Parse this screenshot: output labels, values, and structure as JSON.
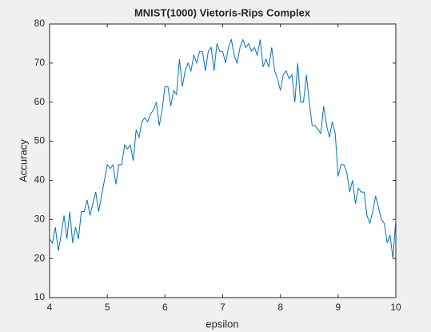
{
  "chart_data": {
    "type": "line",
    "title": "MNIST(1000) Vietoris-Rips Complex",
    "xlabel": "epsilon",
    "ylabel": "Accuracy",
    "x": [
      4,
      4.05,
      4.1,
      4.15,
      4.2,
      4.25,
      4.3,
      4.35,
      4.4,
      4.45,
      4.5,
      4.55,
      4.6,
      4.65,
      4.7,
      4.75,
      4.8,
      4.85,
      4.9,
      4.95,
      5,
      5.05,
      5.1,
      5.15,
      5.2,
      5.25,
      5.3,
      5.35,
      5.4,
      5.45,
      5.5,
      5.55,
      5.6,
      5.65,
      5.7,
      5.75,
      5.8,
      5.85,
      5.9,
      5.95,
      6,
      6.05,
      6.1,
      6.15,
      6.2,
      6.25,
      6.3,
      6.35,
      6.4,
      6.45,
      6.5,
      6.55,
      6.6,
      6.65,
      6.7,
      6.75,
      6.8,
      6.85,
      6.9,
      6.95,
      7,
      7.05,
      7.1,
      7.15,
      7.2,
      7.25,
      7.3,
      7.35,
      7.4,
      7.45,
      7.5,
      7.55,
      7.6,
      7.65,
      7.7,
      7.75,
      7.8,
      7.85,
      7.9,
      7.95,
      8,
      8.05,
      8.1,
      8.15,
      8.2,
      8.25,
      8.3,
      8.35,
      8.4,
      8.45,
      8.5,
      8.55,
      8.6,
      8.65,
      8.7,
      8.75,
      8.8,
      8.85,
      8.9,
      8.95,
      9,
      9.05,
      9.1,
      9.15,
      9.2,
      9.25,
      9.3,
      9.35,
      9.4,
      9.45,
      9.5,
      9.55,
      9.6,
      9.65,
      9.7,
      9.75,
      9.8,
      9.85,
      9.9,
      9.95,
      10
    ],
    "series": [
      {
        "name": "Accuracy",
        "color": "#0072bd",
        "values": [
          25,
          24,
          28,
          22,
          26,
          31,
          25,
          32,
          24,
          28,
          25,
          32,
          32,
          35,
          31,
          34,
          37,
          32,
          36,
          40,
          44,
          43,
          44,
          39,
          44,
          44,
          49,
          48,
          49,
          45,
          53,
          51,
          55,
          56,
          55,
          57,
          58,
          60,
          54,
          58,
          64,
          64,
          59,
          63,
          62,
          71,
          64,
          68,
          70,
          68,
          72,
          70,
          73,
          73,
          68,
          73,
          74,
          68,
          75,
          73,
          73,
          70,
          74,
          76,
          72,
          70,
          74,
          76,
          74,
          75,
          73,
          74,
          72,
          76,
          69,
          71,
          69,
          74,
          68,
          66,
          63,
          67,
          68,
          66,
          67,
          60,
          70,
          60,
          60,
          67,
          60,
          54,
          54,
          53,
          52,
          59,
          54,
          51,
          55,
          52,
          41,
          44,
          44,
          42,
          37,
          40,
          34,
          38,
          37,
          37,
          31,
          29,
          32,
          36,
          33,
          30,
          29,
          24,
          26,
          20,
          30
        ]
      }
    ],
    "xlim": [
      4,
      10
    ],
    "xticks": [
      4,
      5,
      6,
      7,
      8,
      9,
      10
    ],
    "ylim": [
      10,
      80
    ],
    "yticks": [
      10,
      20,
      30,
      40,
      50,
      60,
      70,
      80
    ]
  }
}
